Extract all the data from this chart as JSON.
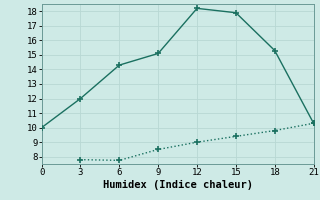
{
  "xlabel": "Humidex (Indice chaleur)",
  "ylabel": "",
  "background_color": "#ceeae6",
  "grid_color": "#b8d8d4",
  "line_color": "#1a7060",
  "x_line1": [
    0,
    3,
    6,
    9,
    12,
    15,
    18,
    21
  ],
  "y_line1": [
    10,
    12,
    14.3,
    15.1,
    18.2,
    17.9,
    15.3,
    10.3
  ],
  "x_line2": [
    3,
    6,
    9,
    12,
    15,
    18,
    21
  ],
  "y_line2": [
    7.8,
    7.75,
    8.5,
    9.0,
    9.4,
    9.8,
    10.3
  ],
  "xlim": [
    0,
    21
  ],
  "ylim": [
    7.5,
    18.5
  ],
  "xticks": [
    0,
    3,
    6,
    9,
    12,
    15,
    18,
    21
  ],
  "yticks": [
    8,
    9,
    10,
    11,
    12,
    13,
    14,
    15,
    16,
    17,
    18
  ],
  "tick_fontsize": 6.5,
  "xlabel_fontsize": 7.5,
  "marker": "+",
  "marker_size": 5,
  "linewidth": 1.0
}
